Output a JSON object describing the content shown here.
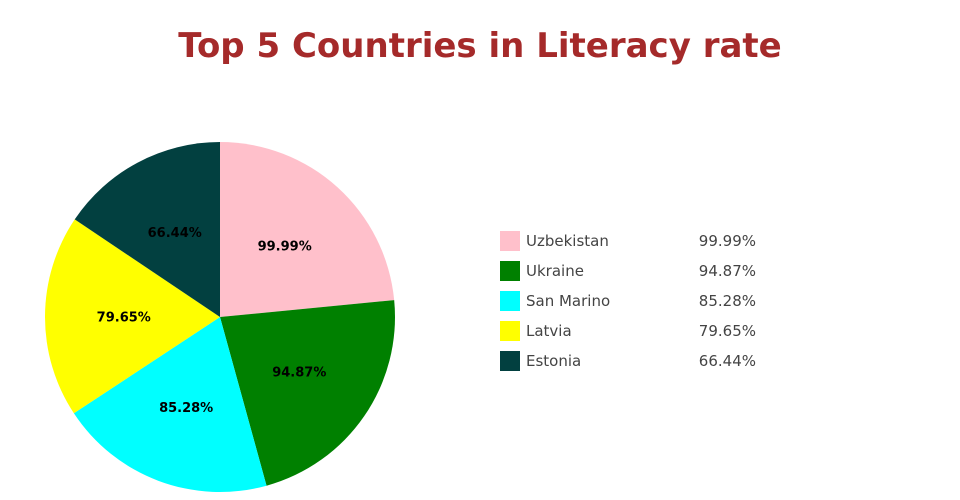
{
  "chart_data": {
    "type": "pie",
    "title": "Top 5 Countries in Literacy rate",
    "categories": [
      "Uzbekistan",
      "Ukraine",
      "San Marino",
      "Latvia",
      "Estonia"
    ],
    "values": [
      99.99,
      94.87,
      85.28,
      79.65,
      66.44
    ],
    "labels": [
      "99.99%",
      "94.87%",
      "85.28%",
      "79.65%",
      "66.44%"
    ],
    "colors": [
      "#ffc0cb",
      "#008000",
      "#00ffff",
      "#ffff00",
      "#024040"
    ],
    "legend_placement": "right"
  }
}
